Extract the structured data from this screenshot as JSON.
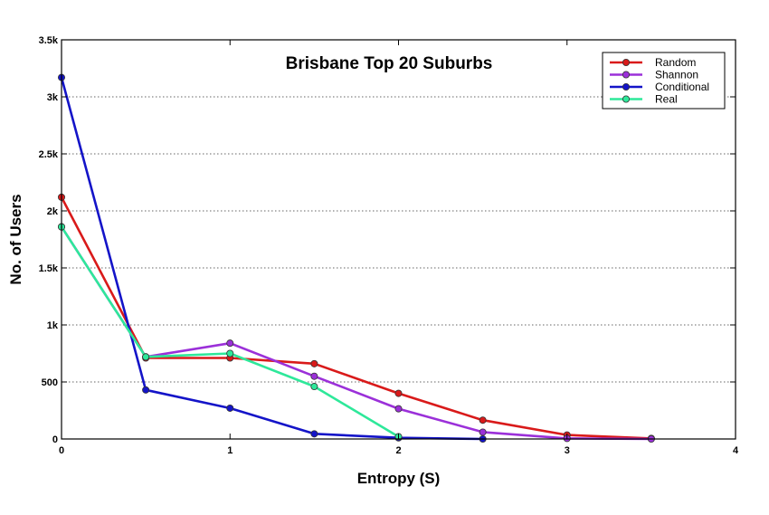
{
  "chart_data": {
    "type": "line",
    "title": "Brisbane Top 20 Suburbs",
    "xlabel": "Entropy (S)",
    "ylabel": "No. of Users",
    "xlim": [
      0,
      4
    ],
    "ylim": [
      0,
      3500
    ],
    "x_ticks": [
      0,
      1,
      2,
      3,
      4
    ],
    "x_tick_labels": [
      "0",
      "1",
      "2",
      "3",
      "4"
    ],
    "y_ticks": [
      0,
      500,
      1000,
      1500,
      2000,
      2500,
      3000,
      3500
    ],
    "y_tick_labels": [
      "0",
      "500",
      "1k",
      "1.5k",
      "2k",
      "2.5k",
      "3k",
      "3.5k"
    ],
    "grid": "horizontal-dotted",
    "legend_position": "top-right",
    "series": [
      {
        "name": "Random",
        "color": "#d91a1a",
        "x": [
          0,
          0.5,
          1,
          1.5,
          2,
          2.5,
          3,
          3.5
        ],
        "y": [
          2120,
          710,
          710,
          660,
          400,
          165,
          35,
          5
        ]
      },
      {
        "name": "Shannon",
        "color": "#9b30d9",
        "x": [
          0,
          0.5,
          1,
          1.5,
          2,
          2.5,
          3,
          3.5
        ],
        "y": [
          1860,
          720,
          840,
          550,
          265,
          60,
          5,
          0
        ]
      },
      {
        "name": "Conditional",
        "color": "#1414c8",
        "x": [
          0,
          0.5,
          1,
          1.5,
          2,
          2.5
        ],
        "y": [
          3170,
          430,
          270,
          45,
          10,
          0
        ]
      },
      {
        "name": "Real",
        "color": "#2ee89a",
        "x": [
          0,
          0.5,
          1,
          1.5,
          2
        ],
        "y": [
          1860,
          720,
          750,
          460,
          20
        ]
      }
    ]
  }
}
